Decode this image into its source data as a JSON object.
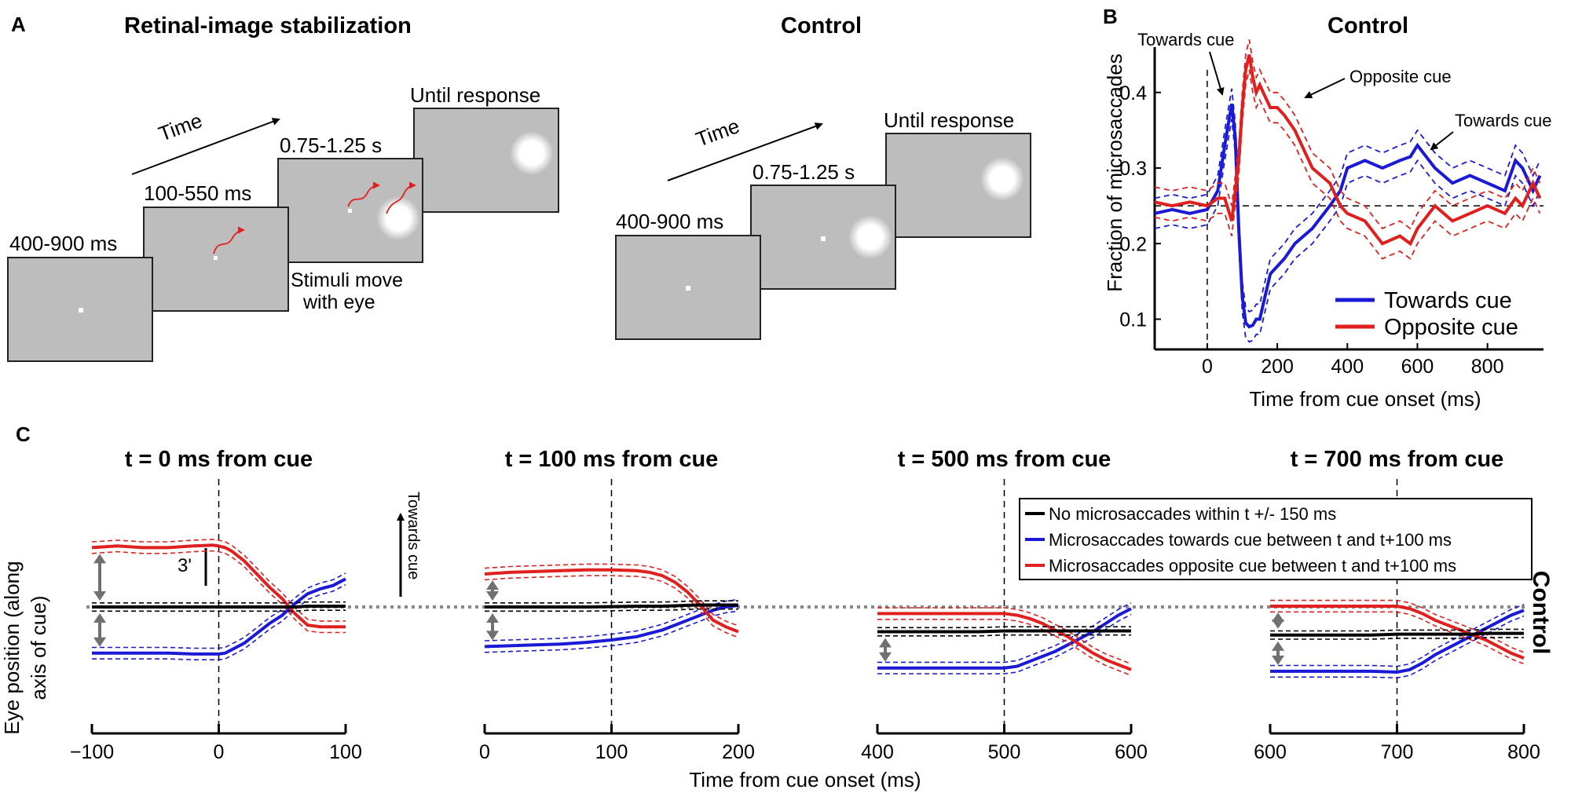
{
  "panel_a": {
    "label": "A",
    "stab_title": "Retinal-image stabilization",
    "ctrl_title": "Control",
    "time_label": "Time",
    "stab_intervals": [
      "400-900 ms",
      "100-550 ms",
      "0.75-1.25 s",
      "Until response"
    ],
    "stab_note_1": "Stimuli move",
    "stab_note_2": "with eye",
    "ctrl_intervals": [
      "400-900 ms",
      "0.75-1.25 s",
      "Until response"
    ]
  },
  "panel_b": {
    "label": "B",
    "annotations": {
      "towards_1": "Towards cue",
      "opposite": "Opposite cue",
      "towards_2": "Towards cue"
    }
  },
  "panel_c": {
    "label": "C",
    "side_label": "Control",
    "ylabel_1": "Eye position (along",
    "ylabel_2": "axis of cue)",
    "xlabel": "Time from cue onset (ms)",
    "scale_label": "3'",
    "direction_label": "Towards cue",
    "legend": [
      "No microsaccades within t +/- 150 ms",
      "Microsaccades towards cue between t and t+100 ms",
      "Microsaccades opposite cue between t and t+100 ms"
    ]
  },
  "colors": {
    "blue": "#1a1ad6",
    "red": "#e0201e",
    "gray_screen": "#bdbdbd",
    "arrow_gray": "#707070"
  },
  "chart_data": [
    {
      "type": "line",
      "title": "Control",
      "xlabel": "Time from cue onset (ms)",
      "ylabel": "Fraction of microsaccades",
      "xlim": [
        -150,
        960
      ],
      "ylim": [
        0.06,
        0.46
      ],
      "xticks": [
        0,
        200,
        400,
        600,
        800
      ],
      "yticks": [
        0.1,
        0.2,
        0.3,
        0.4
      ],
      "reference_y": 0.25,
      "reference_x": 0,
      "x": [
        -150,
        -100,
        -50,
        0,
        30,
        50,
        70,
        80,
        90,
        100,
        110,
        120,
        130,
        140,
        150,
        160,
        180,
        200,
        220,
        250,
        300,
        350,
        380,
        400,
        450,
        500,
        550,
        580,
        600,
        650,
        700,
        750,
        800,
        850,
        880,
        900,
        930,
        950
      ],
      "series": [
        {
          "name": "Towards cue",
          "color": "#1a1ad6",
          "values": [
            0.24,
            0.245,
            0.24,
            0.245,
            0.27,
            0.33,
            0.385,
            0.34,
            0.22,
            0.13,
            0.095,
            0.09,
            0.092,
            0.1,
            0.1,
            0.12,
            0.16,
            0.17,
            0.18,
            0.2,
            0.22,
            0.25,
            0.27,
            0.3,
            0.31,
            0.3,
            0.31,
            0.315,
            0.33,
            0.3,
            0.28,
            0.29,
            0.28,
            0.27,
            0.31,
            0.3,
            0.27,
            0.29
          ]
        },
        {
          "name": "Opposite cue",
          "color": "#e0201e",
          "values": [
            0.255,
            0.25,
            0.255,
            0.25,
            0.26,
            0.26,
            0.23,
            0.27,
            0.31,
            0.38,
            0.43,
            0.45,
            0.42,
            0.4,
            0.41,
            0.4,
            0.38,
            0.38,
            0.37,
            0.35,
            0.3,
            0.28,
            0.25,
            0.24,
            0.23,
            0.2,
            0.21,
            0.2,
            0.22,
            0.25,
            0.23,
            0.24,
            0.25,
            0.24,
            0.26,
            0.25,
            0.28,
            0.26
          ]
        }
      ],
      "legend": "bottom-right"
    },
    {
      "type": "line",
      "title": "t = 0 ms from cue",
      "xlim": [
        -100,
        100
      ],
      "xticks": [
        -100,
        0,
        100
      ],
      "tick_labels": [
        "−100",
        "0",
        "100"
      ],
      "cue_x": 0,
      "ylim": [
        -4.5,
        4.0
      ],
      "x": [
        -100,
        -80,
        -60,
        -40,
        -20,
        -5,
        0,
        5,
        10,
        20,
        30,
        40,
        50,
        60,
        70,
        80,
        90,
        100
      ],
      "series": [
        {
          "name": "No microsaccades within t +/- 150 ms",
          "color": "#000000",
          "values": [
            0,
            0,
            0,
            0,
            0,
            0,
            0,
            0,
            0,
            0,
            0,
            0,
            0,
            0,
            0.05,
            0.05,
            0.05,
            0.05
          ]
        },
        {
          "name": "Microsaccades towards cue between t and t+100 ms",
          "color": "#1a1ad6",
          "values": [
            -2.8,
            -2.8,
            -2.8,
            -2.8,
            -2.85,
            -2.85,
            -2.85,
            -2.8,
            -2.6,
            -2.2,
            -1.6,
            -1.0,
            -0.5,
            0.2,
            0.8,
            1.1,
            1.3,
            1.7
          ]
        },
        {
          "name": "Microsaccades opposite cue between t and t+100 ms",
          "color": "#e0201e",
          "values": [
            3.6,
            3.7,
            3.6,
            3.6,
            3.7,
            3.75,
            3.7,
            3.6,
            3.4,
            2.8,
            2.0,
            1.2,
            0.5,
            -0.4,
            -1.1,
            -1.2,
            -1.2,
            -1.2
          ]
        }
      ]
    },
    {
      "type": "line",
      "title": "t = 100 ms from cue",
      "xlim": [
        0,
        200
      ],
      "xticks": [
        0,
        100,
        200
      ],
      "tick_labels": [
        "0",
        "100",
        "200"
      ],
      "cue_x": 100,
      "ylim": [
        -4.5,
        4.0
      ],
      "x": [
        0,
        20,
        40,
        60,
        80,
        100,
        120,
        130,
        140,
        150,
        160,
        170,
        180,
        190,
        200
      ],
      "series": [
        {
          "name": "No microsaccades within t +/- 150 ms",
          "color": "#000000",
          "values": [
            0,
            0,
            0,
            0,
            0,
            0.02,
            0.05,
            0.05,
            0.05,
            0.07,
            0.1,
            0.12,
            0.12,
            0.12,
            0.12
          ]
        },
        {
          "name": "Microsaccades towards cue between t and t+100 ms",
          "color": "#1a1ad6",
          "values": [
            -2.4,
            -2.35,
            -2.3,
            -2.25,
            -2.15,
            -2.0,
            -1.8,
            -1.6,
            -1.4,
            -1.1,
            -0.8,
            -0.5,
            -0.2,
            0.0,
            0.1
          ]
        },
        {
          "name": "Microsaccades opposite cue between t and t+100 ms",
          "color": "#e0201e",
          "values": [
            2.0,
            2.1,
            2.15,
            2.2,
            2.25,
            2.25,
            2.2,
            2.1,
            1.9,
            1.5,
            0.9,
            0.1,
            -0.8,
            -1.2,
            -1.5
          ]
        }
      ]
    },
    {
      "type": "line",
      "title": "t = 500 ms from cue",
      "xlim": [
        400,
        600
      ],
      "xticks": [
        400,
        500,
        600
      ],
      "tick_labels": [
        "400",
        "500",
        "600"
      ],
      "cue_x": 500,
      "ylim": [
        -4.5,
        4.0
      ],
      "x": [
        400,
        420,
        440,
        460,
        480,
        500,
        510,
        520,
        530,
        540,
        550,
        560,
        570,
        580,
        590,
        600
      ],
      "series": [
        {
          "name": "No microsaccades within t +/- 150 ms",
          "color": "#000000",
          "values": [
            -1.5,
            -1.5,
            -1.5,
            -1.5,
            -1.5,
            -1.45,
            -1.45,
            -1.45,
            -1.45,
            -1.45,
            -1.45,
            -1.45,
            -1.45,
            -1.45,
            -1.45,
            -1.45
          ]
        },
        {
          "name": "Microsaccades towards cue between t and t+100 ms",
          "color": "#1a1ad6",
          "values": [
            -3.7,
            -3.7,
            -3.7,
            -3.7,
            -3.7,
            -3.7,
            -3.6,
            -3.3,
            -3.0,
            -2.7,
            -2.3,
            -1.9,
            -1.5,
            -1.0,
            -0.5,
            -0.1
          ]
        },
        {
          "name": "Microsaccades opposite cue between t and t+100 ms",
          "color": "#e0201e",
          "values": [
            -0.4,
            -0.4,
            -0.4,
            -0.4,
            -0.4,
            -0.4,
            -0.5,
            -0.7,
            -1.0,
            -1.4,
            -1.8,
            -2.3,
            -2.8,
            -3.2,
            -3.5,
            -3.8
          ]
        }
      ]
    },
    {
      "type": "line",
      "title": "t = 700 ms from cue",
      "xlim": [
        600,
        800
      ],
      "xticks": [
        600,
        700,
        800
      ],
      "tick_labels": [
        "600",
        "700",
        "800"
      ],
      "cue_x": 700,
      "ylim": [
        -4.5,
        4.0
      ],
      "x": [
        600,
        620,
        640,
        660,
        680,
        700,
        710,
        720,
        730,
        740,
        750,
        760,
        770,
        780,
        790,
        800
      ],
      "series": [
        {
          "name": "No microsaccades within t +/- 150 ms",
          "color": "#000000",
          "values": [
            -1.7,
            -1.7,
            -1.7,
            -1.7,
            -1.7,
            -1.65,
            -1.65,
            -1.65,
            -1.65,
            -1.65,
            -1.65,
            -1.65,
            -1.6,
            -1.6,
            -1.6,
            -1.6
          ]
        },
        {
          "name": "Microsaccades towards cue between t and t+100 ms",
          "color": "#1a1ad6",
          "values": [
            -3.9,
            -3.9,
            -3.9,
            -3.9,
            -3.9,
            -3.95,
            -3.8,
            -3.4,
            -2.9,
            -2.5,
            -2.1,
            -1.7,
            -1.3,
            -0.9,
            -0.5,
            -0.2
          ]
        },
        {
          "name": "Microsaccades opposite cue between t and t+100 ms",
          "color": "#e0201e",
          "values": [
            0.05,
            0.05,
            0.05,
            0.05,
            0.05,
            0.05,
            -0.1,
            -0.4,
            -0.8,
            -1.1,
            -1.4,
            -1.7,
            -2.0,
            -2.4,
            -2.8,
            -3.1
          ]
        }
      ]
    }
  ]
}
